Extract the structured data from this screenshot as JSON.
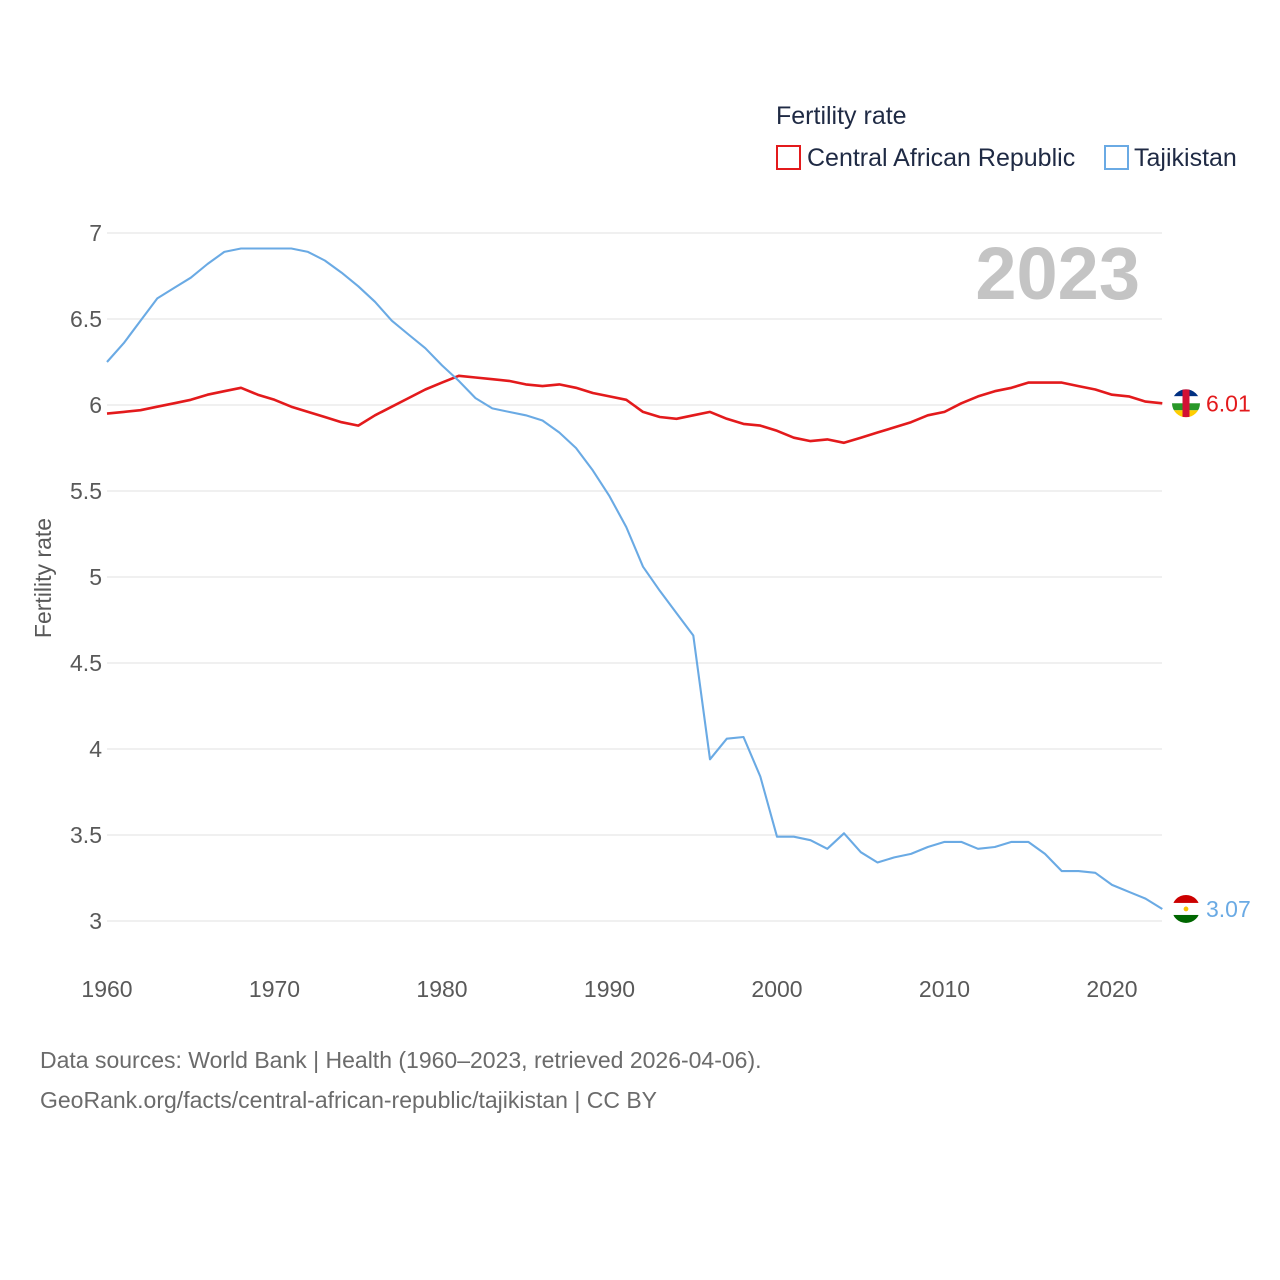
{
  "chart_data": {
    "type": "line",
    "title": "Fertility rate",
    "watermark_year": "2023",
    "ylabel": "Fertility rate",
    "xlabel": "",
    "xlim": [
      1960,
      2023.6
    ],
    "ylim": [
      3,
      7
    ],
    "x_ticks": [
      {
        "value": 1960,
        "label": "1960"
      },
      {
        "value": 1970,
        "label": "1970"
      },
      {
        "value": 1980,
        "label": "1980"
      },
      {
        "value": 1990,
        "label": "1990"
      },
      {
        "value": 2000,
        "label": "2000"
      },
      {
        "value": 2010,
        "label": "2010"
      },
      {
        "value": 2020,
        "label": "2020"
      }
    ],
    "y_ticks": [
      {
        "value": 3,
        "label": "3"
      },
      {
        "value": 3.5,
        "label": "3.5"
      },
      {
        "value": 4,
        "label": "4"
      },
      {
        "value": 4.5,
        "label": "4.5"
      },
      {
        "value": 5,
        "label": "5"
      },
      {
        "value": 5.5,
        "label": "5.5"
      },
      {
        "value": 6,
        "label": "6"
      },
      {
        "value": 6.5,
        "label": "6.5"
      },
      {
        "value": 7,
        "label": "7"
      }
    ],
    "grid": true,
    "x": [
      1960,
      1961,
      1962,
      1963,
      1964,
      1965,
      1966,
      1967,
      1968,
      1969,
      1970,
      1971,
      1972,
      1973,
      1974,
      1975,
      1976,
      1977,
      1978,
      1979,
      1980,
      1981,
      1982,
      1983,
      1984,
      1985,
      1986,
      1987,
      1988,
      1989,
      1990,
      1991,
      1992,
      1993,
      1994,
      1995,
      1996,
      1997,
      1998,
      1999,
      2000,
      2001,
      2002,
      2003,
      2004,
      2005,
      2006,
      2007,
      2008,
      2009,
      2010,
      2011,
      2012,
      2013,
      2014,
      2015,
      2016,
      2017,
      2018,
      2019,
      2020,
      2021,
      2022,
      2023
    ],
    "series": [
      {
        "name": "Central African Republic",
        "color": "#e31a1c",
        "end_label": "6.01",
        "flag": "central-african-republic-flag-icon",
        "values": [
          5.95,
          5.96,
          5.97,
          5.99,
          6.01,
          6.03,
          6.06,
          6.08,
          6.1,
          6.06,
          6.03,
          5.99,
          5.96,
          5.93,
          5.9,
          5.88,
          5.94,
          5.99,
          6.04,
          6.09,
          6.13,
          6.17,
          6.16,
          6.15,
          6.14,
          6.12,
          6.11,
          6.12,
          6.1,
          6.07,
          6.05,
          6.03,
          5.96,
          5.93,
          5.92,
          5.94,
          5.96,
          5.92,
          5.89,
          5.88,
          5.85,
          5.81,
          5.79,
          5.8,
          5.78,
          5.81,
          5.84,
          5.87,
          5.9,
          5.94,
          5.96,
          6.01,
          6.05,
          6.08,
          6.1,
          6.13,
          6.13,
          6.13,
          6.11,
          6.09,
          6.06,
          6.05,
          6.02,
          6.01
        ]
      },
      {
        "name": "Tajikistan",
        "color": "#6aaae4",
        "end_label": "3.07",
        "flag": "tajikistan-flag-icon",
        "values": [
          6.25,
          6.36,
          6.49,
          6.62,
          6.68,
          6.74,
          6.82,
          6.89,
          6.91,
          6.91,
          6.91,
          6.91,
          6.89,
          6.84,
          6.77,
          6.69,
          6.6,
          6.49,
          6.41,
          6.33,
          6.23,
          6.14,
          6.04,
          5.98,
          5.96,
          5.94,
          5.91,
          5.84,
          5.75,
          5.62,
          5.47,
          5.29,
          5.06,
          4.92,
          4.79,
          4.66,
          3.94,
          4.06,
          4.07,
          3.84,
          3.49,
          3.49,
          3.47,
          3.42,
          3.51,
          3.4,
          3.34,
          3.37,
          3.39,
          3.43,
          3.46,
          3.46,
          3.42,
          3.43,
          3.46,
          3.46,
          3.39,
          3.29,
          3.29,
          3.28,
          3.21,
          3.17,
          3.13,
          3.07
        ]
      }
    ]
  },
  "footer": {
    "line1": "Data sources: World Bank | Health (1960–2023, retrieved 2026-04-06).",
    "line2": "GeoRank.org/facts/central-african-republic/tajikistan | CC BY"
  }
}
